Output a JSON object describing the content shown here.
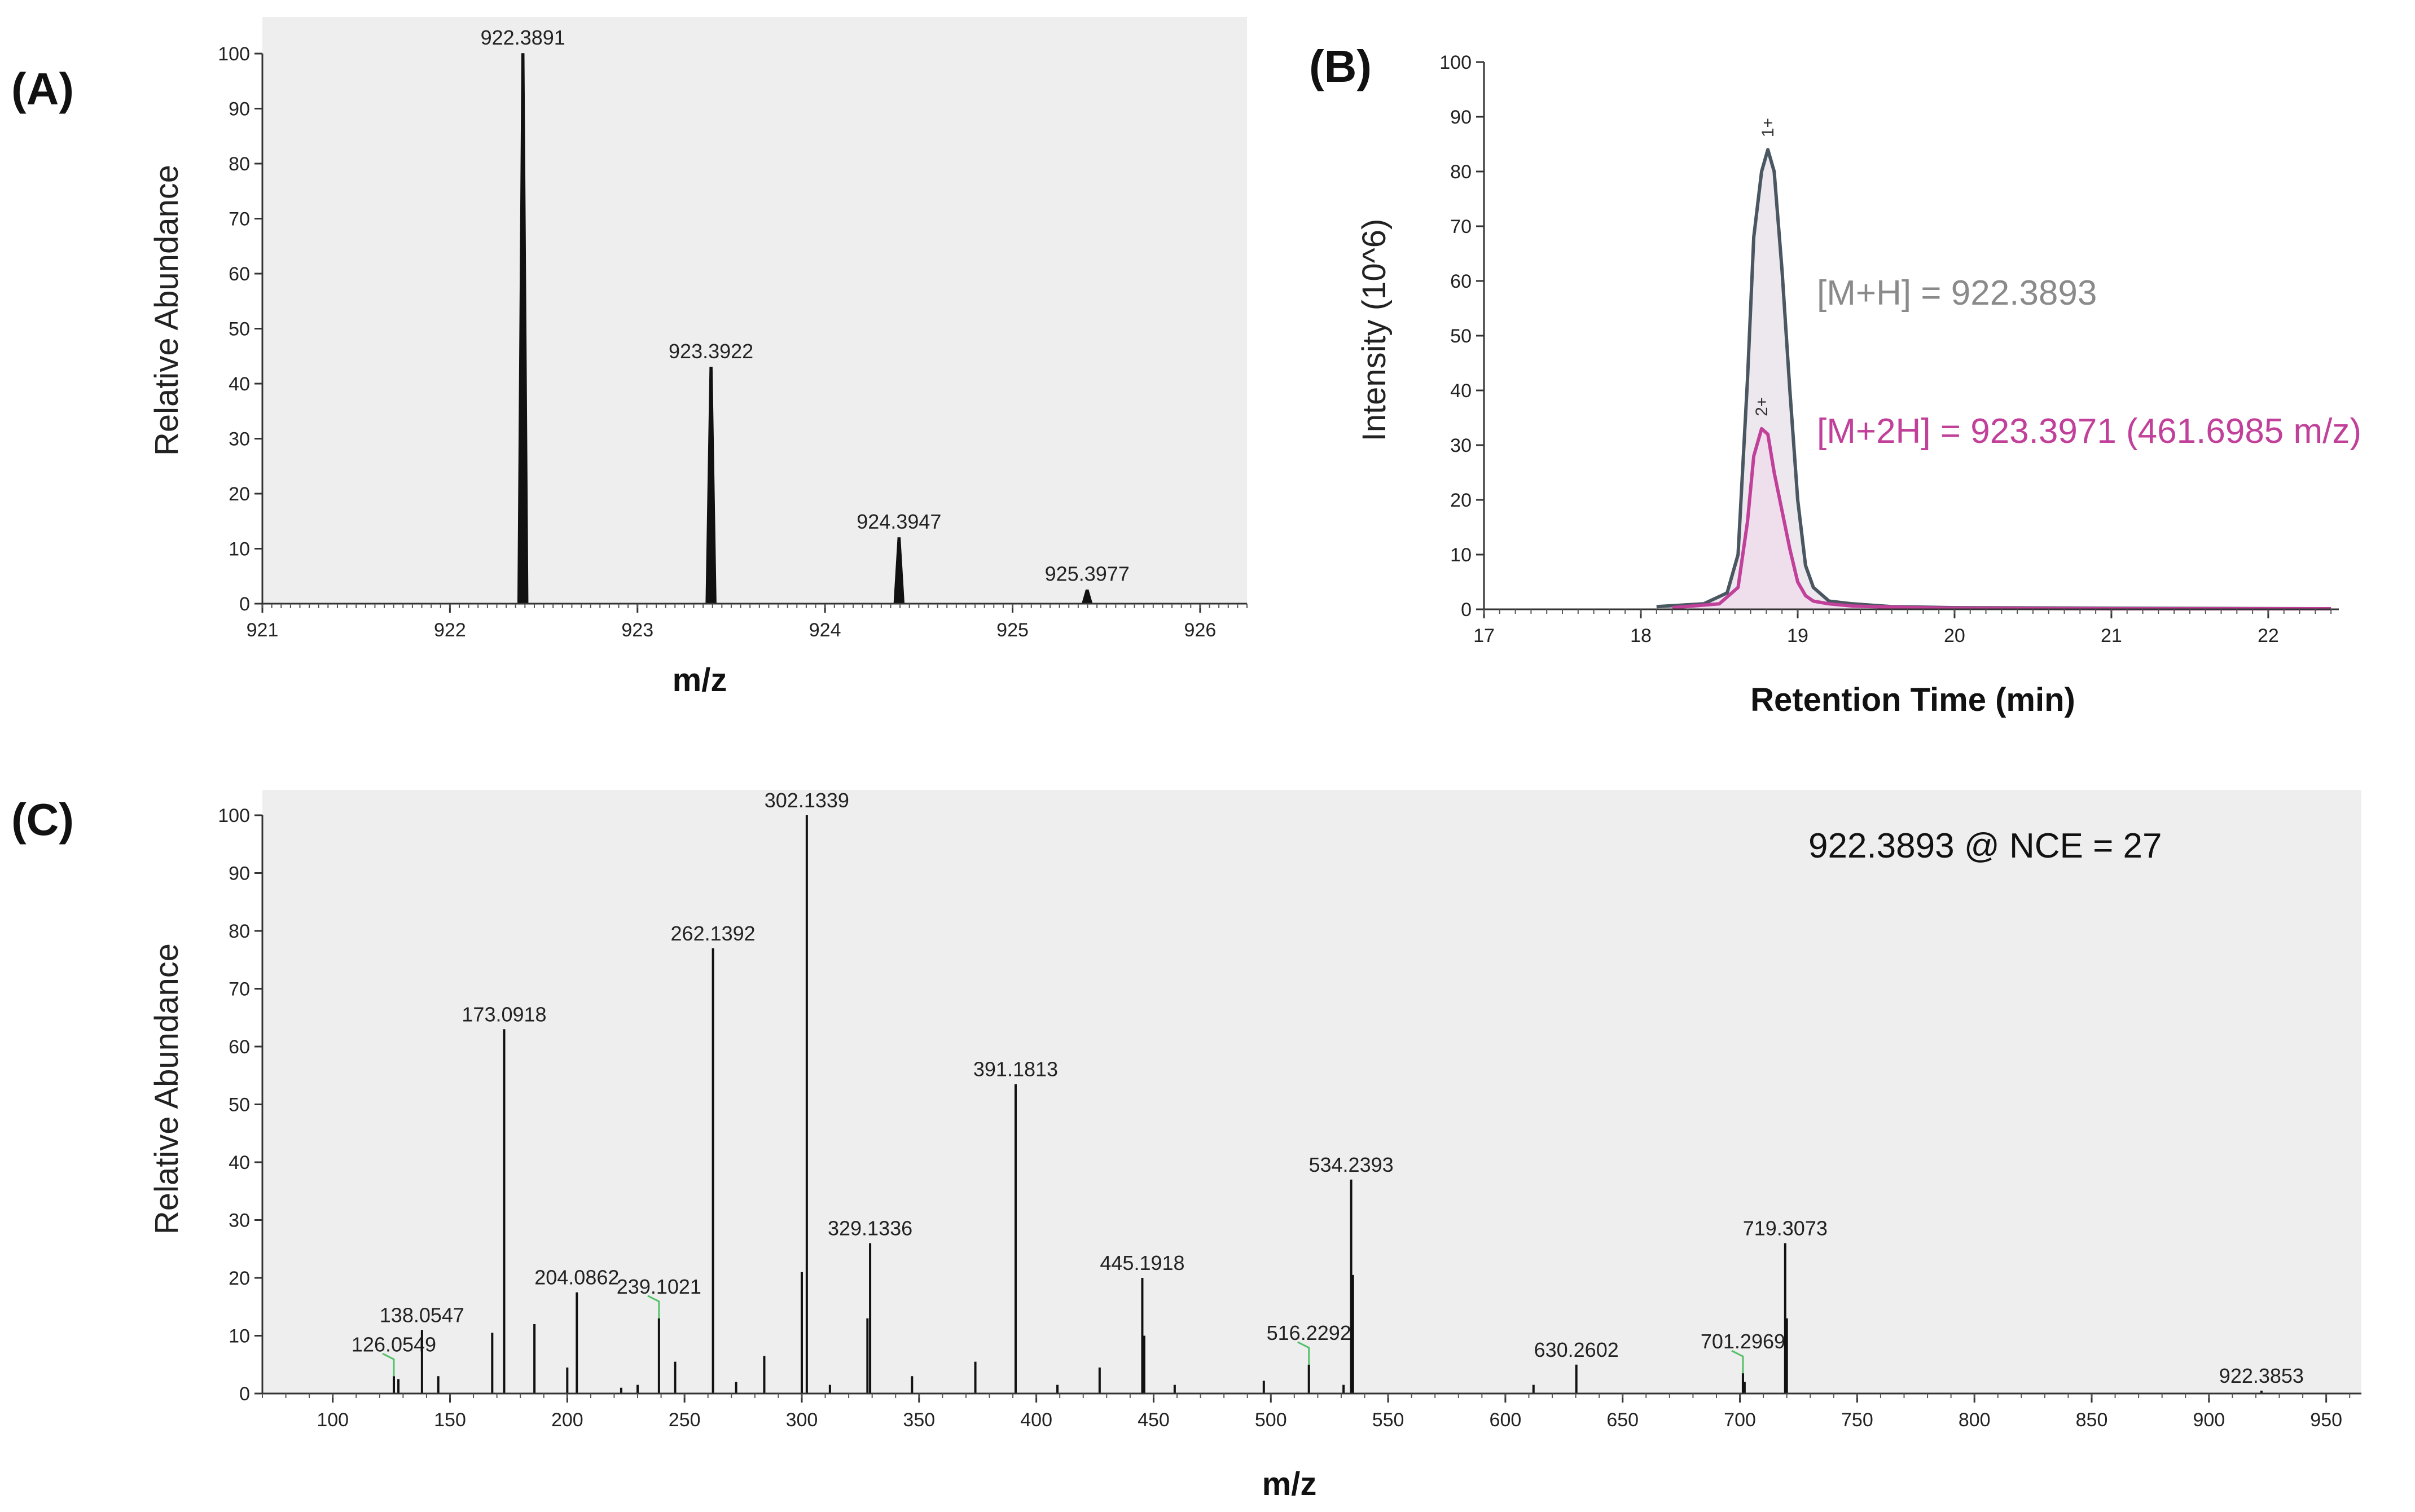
{
  "panels": {
    "a": "(A)",
    "b": "(B)",
    "c": "(C)"
  },
  "colors": {
    "plot_bg": "#eeeeee",
    "peak": "#111111",
    "trace1": "#4a5660",
    "trace2": "#c0409a",
    "fill2": "#f0dceb",
    "label1": "#8a8a8a",
    "label2": "#c0409a",
    "green": "#55c06a"
  },
  "chart_data": [
    {
      "id": "A",
      "type": "bar",
      "title": "",
      "xlabel": "m/z",
      "ylabel": "Relative Abundance",
      "xlim": [
        921.0,
        926.25
      ],
      "ylim": [
        0,
        100
      ],
      "x_ticks": [
        921,
        922,
        923,
        924,
        925,
        926
      ],
      "y_ticks": [
        0,
        10,
        20,
        30,
        40,
        50,
        60,
        70,
        80,
        90,
        100
      ],
      "peaks": [
        {
          "mz": 922.3891,
          "intensity": 100,
          "label": "922.3891"
        },
        {
          "mz": 923.3922,
          "intensity": 43,
          "label": "923.3922"
        },
        {
          "mz": 924.3947,
          "intensity": 12,
          "label": "924.3947"
        },
        {
          "mz": 925.3977,
          "intensity": 2.5,
          "label": "925.3977"
        }
      ]
    },
    {
      "id": "B",
      "type": "area",
      "title": "",
      "xlabel": "Retention Time (min)",
      "ylabel": "Intensity (10^6)",
      "xlim": [
        17,
        22.45
      ],
      "ylim": [
        0,
        100
      ],
      "x_ticks": [
        17,
        18,
        19,
        20,
        21,
        22
      ],
      "y_ticks": [
        0,
        10,
        20,
        30,
        40,
        50,
        60,
        70,
        80,
        90,
        100
      ],
      "series": [
        {
          "name": "[M+H] = 922.3893",
          "charge_label": "1+",
          "x": [
            18.1,
            18.4,
            18.55,
            18.62,
            18.68,
            18.72,
            18.77,
            18.81,
            18.85,
            18.9,
            18.95,
            19.0,
            19.05,
            19.1,
            19.2,
            19.35,
            19.6,
            20.0,
            21.0,
            22.4
          ],
          "y": [
            0.5,
            1,
            3,
            10,
            42,
            68,
            80,
            84,
            80,
            62,
            40,
            20,
            8,
            4,
            1.5,
            1,
            0.5,
            0.3,
            0.2,
            0.1
          ]
        },
        {
          "name": "[M+2H] = 923.3971 (461.6985 m/z)",
          "charge_label": "2+",
          "x": [
            18.2,
            18.5,
            18.62,
            18.68,
            18.72,
            18.77,
            18.81,
            18.85,
            18.9,
            18.95,
            19.0,
            19.05,
            19.1,
            19.2,
            19.35,
            19.6,
            20.0,
            21.0,
            22.4
          ],
          "y": [
            0.3,
            1,
            4,
            16,
            28,
            33,
            32,
            25,
            18,
            11,
            5,
            2.5,
            1.5,
            1,
            0.6,
            0.4,
            0.2,
            0.1,
            0.1
          ]
        }
      ]
    },
    {
      "id": "C",
      "type": "bar",
      "title": "922.3893 @ NCE = 27",
      "xlabel": "m/z",
      "ylabel": "Relative Abundance",
      "xlim": [
        70,
        965
      ],
      "ylim": [
        0,
        100
      ],
      "x_ticks": [
        100,
        150,
        200,
        250,
        300,
        350,
        400,
        450,
        500,
        550,
        600,
        650,
        700,
        750,
        800,
        850,
        900,
        950
      ],
      "y_ticks": [
        0,
        10,
        20,
        30,
        40,
        50,
        60,
        70,
        80,
        90,
        100
      ],
      "labeled_peaks": [
        {
          "mz": 126.0549,
          "intensity": 3,
          "label": "126.0549",
          "green": true
        },
        {
          "mz": 138.0547,
          "intensity": 11,
          "label": "138.0547"
        },
        {
          "mz": 173.0918,
          "intensity": 63,
          "label": "173.0918"
        },
        {
          "mz": 204.0862,
          "intensity": 17.5,
          "label": "204.0862"
        },
        {
          "mz": 239.1021,
          "intensity": 13,
          "label": "239.1021",
          "green": true
        },
        {
          "mz": 262.1392,
          "intensity": 77,
          "label": "262.1392"
        },
        {
          "mz": 302.1339,
          "intensity": 100,
          "label": "302.1339"
        },
        {
          "mz": 329.1336,
          "intensity": 26,
          "label": "329.1336"
        },
        {
          "mz": 391.1813,
          "intensity": 53.5,
          "label": "391.1813"
        },
        {
          "mz": 445.1918,
          "intensity": 20,
          "label": "445.1918"
        },
        {
          "mz": 516.2292,
          "intensity": 5,
          "label": "516.2292",
          "green": true
        },
        {
          "mz": 534.2393,
          "intensity": 37,
          "label": "534.2393"
        },
        {
          "mz": 630.2602,
          "intensity": 5,
          "label": "630.2602"
        },
        {
          "mz": 701.2969,
          "intensity": 3.5,
          "label": "701.2969",
          "green": true
        },
        {
          "mz": 719.3073,
          "intensity": 26,
          "label": "719.3073"
        },
        {
          "mz": 922.3853,
          "intensity": 0.5,
          "label": "922.3853"
        }
      ],
      "minor_peaks": [
        {
          "mz": 128,
          "intensity": 2.5
        },
        {
          "mz": 145,
          "intensity": 3
        },
        {
          "mz": 168,
          "intensity": 10.5
        },
        {
          "mz": 186,
          "intensity": 12
        },
        {
          "mz": 200,
          "intensity": 4.5
        },
        {
          "mz": 223,
          "intensity": 1
        },
        {
          "mz": 230,
          "intensity": 1.5
        },
        {
          "mz": 246,
          "intensity": 5.5
        },
        {
          "mz": 272,
          "intensity": 2
        },
        {
          "mz": 284,
          "intensity": 6.5
        },
        {
          "mz": 300,
          "intensity": 21
        },
        {
          "mz": 312,
          "intensity": 1.5
        },
        {
          "mz": 328,
          "intensity": 13
        },
        {
          "mz": 347,
          "intensity": 3
        },
        {
          "mz": 374,
          "intensity": 5.5
        },
        {
          "mz": 409,
          "intensity": 1.5
        },
        {
          "mz": 427,
          "intensity": 4.5
        },
        {
          "mz": 446,
          "intensity": 10
        },
        {
          "mz": 459,
          "intensity": 1.5
        },
        {
          "mz": 497,
          "intensity": 2.2
        },
        {
          "mz": 535,
          "intensity": 20.5
        },
        {
          "mz": 531,
          "intensity": 1.5
        },
        {
          "mz": 612,
          "intensity": 1.5
        },
        {
          "mz": 702,
          "intensity": 2
        },
        {
          "mz": 720,
          "intensity": 13
        }
      ]
    }
  ]
}
